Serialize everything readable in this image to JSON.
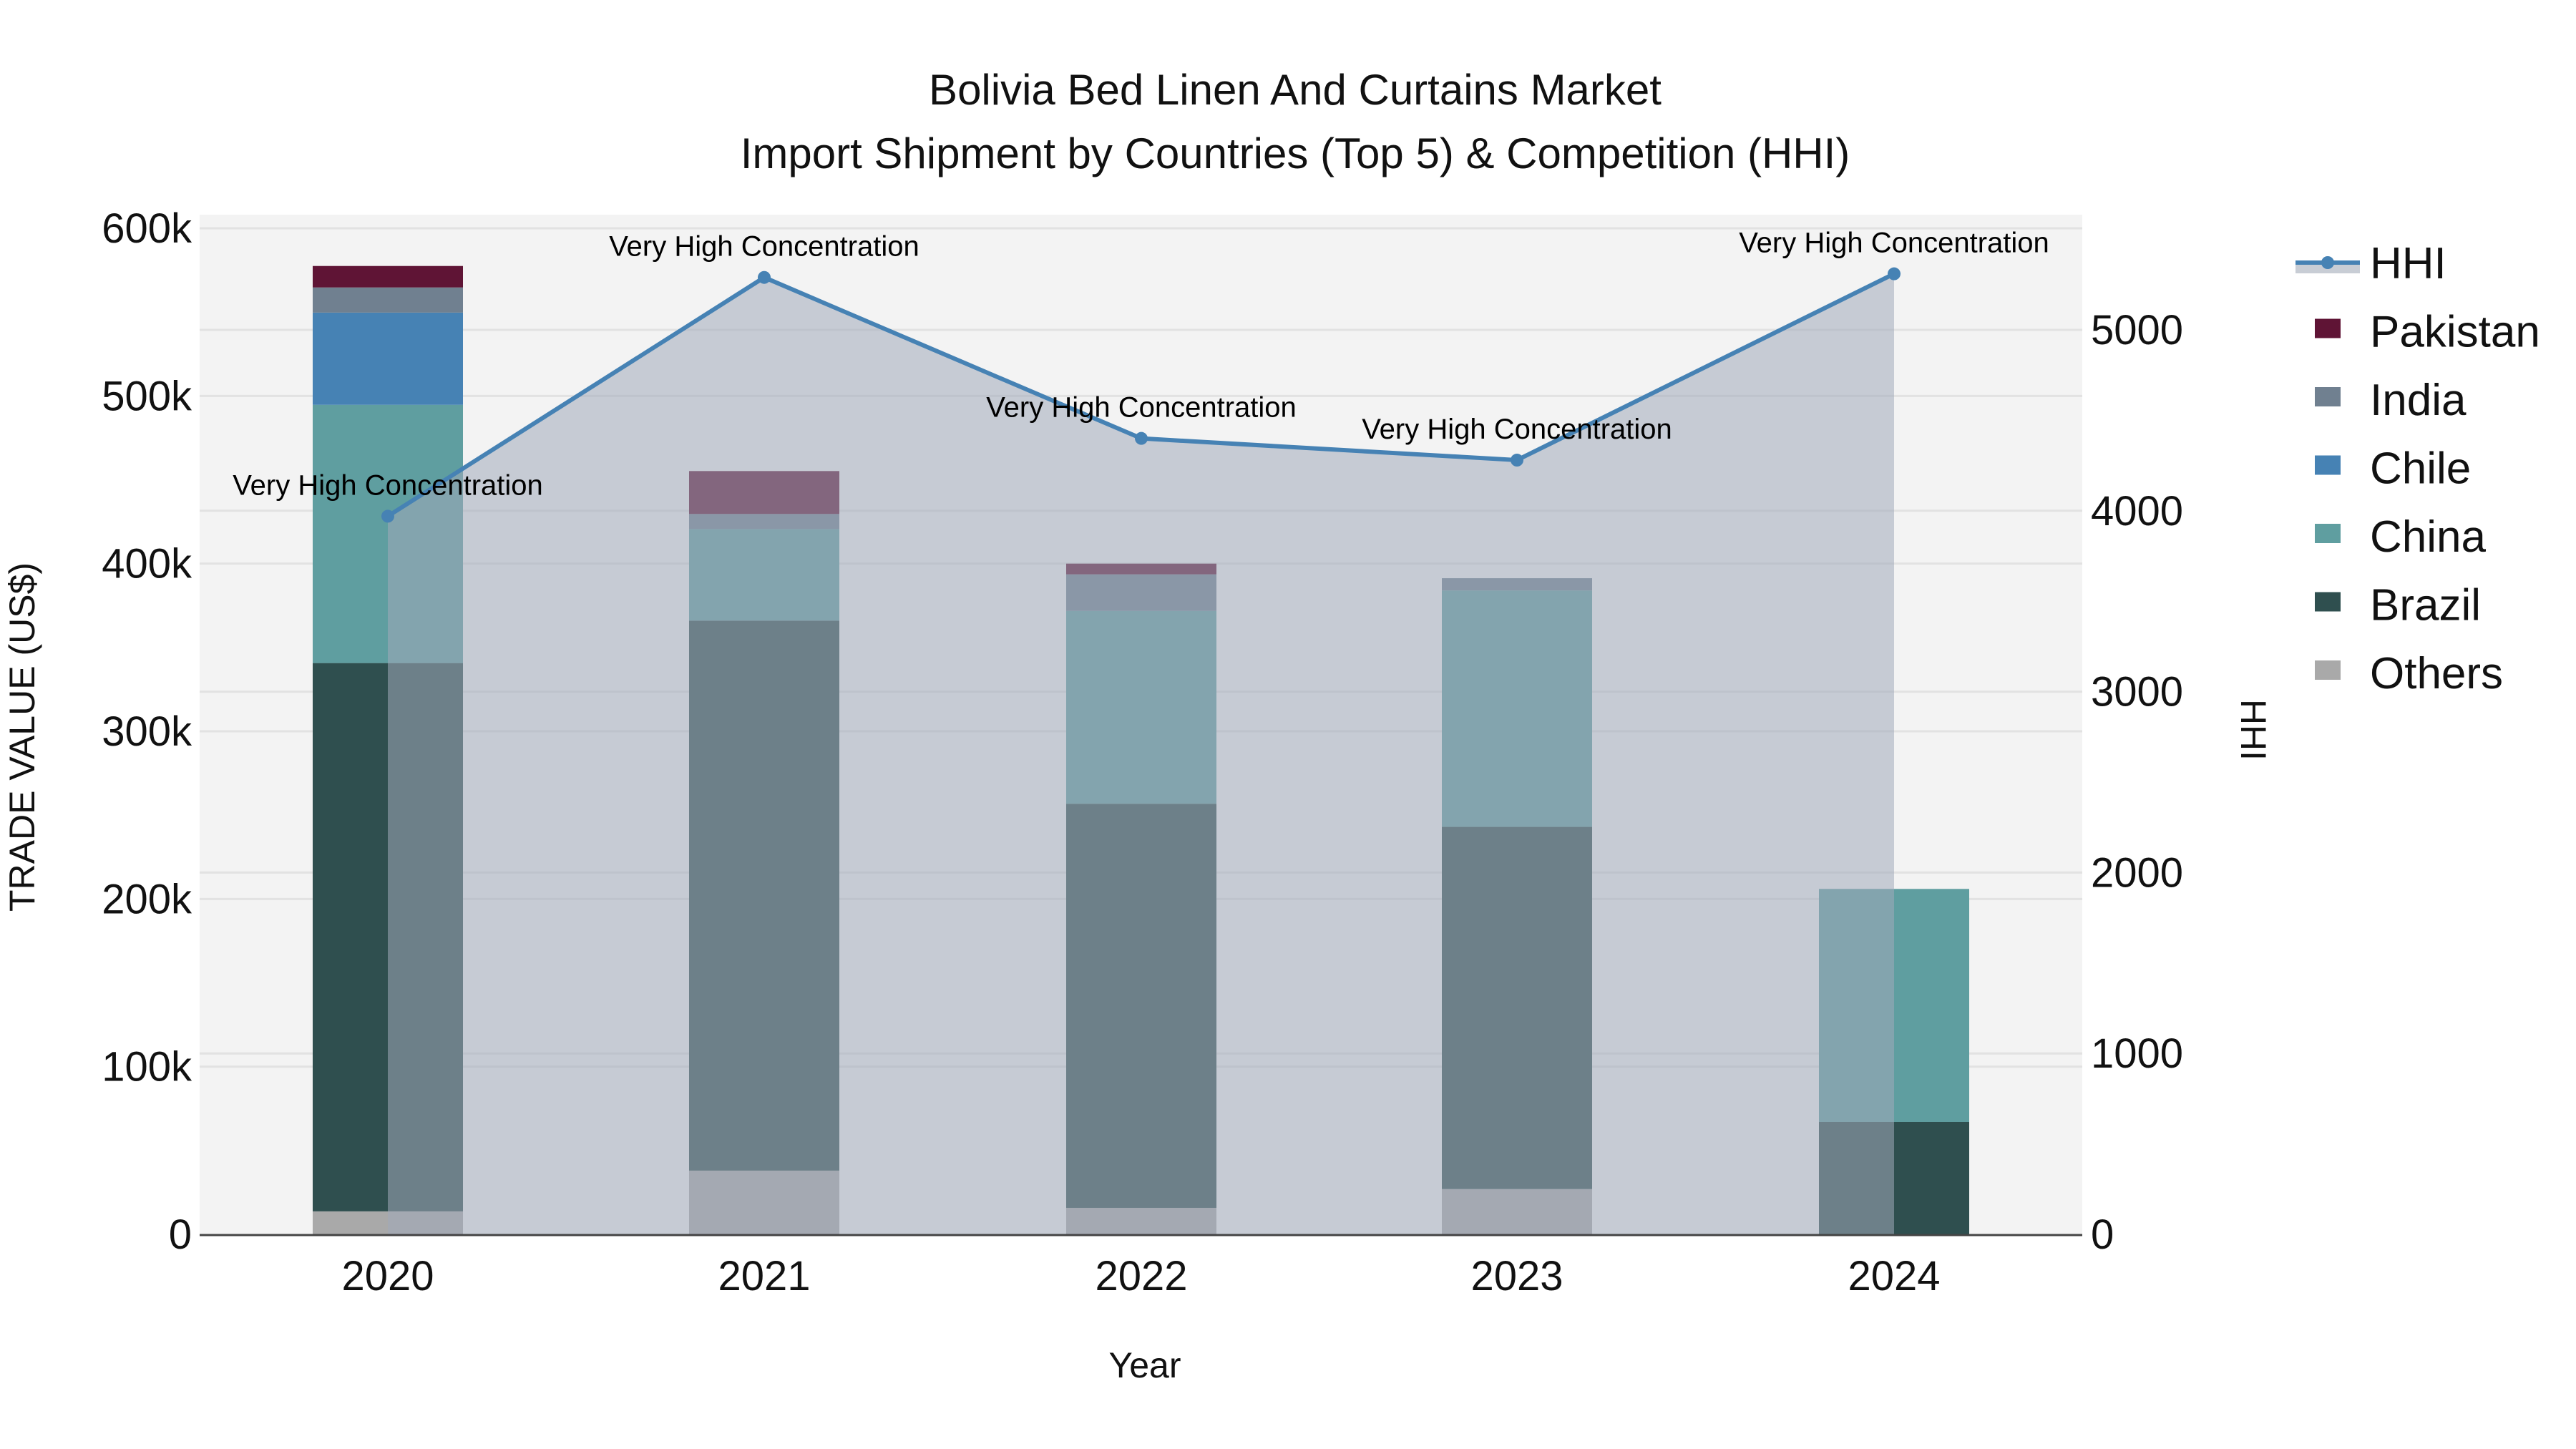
{
  "chart_data": {
    "type": "bar",
    "title": "Bolivia Bed Linen And Curtains Market",
    "subtitle": "Import Shipment by Countries (Top 5) & Competition (HHI)",
    "xlabel": "Year",
    "ylabel": "TRADE VALUE (US$)",
    "y2label": "HHI",
    "categories": [
      "2020",
      "2021",
      "2022",
      "2023",
      "2024"
    ],
    "stacked": true,
    "ylim": [
      0,
      600000
    ],
    "y2lim": [
      0,
      5600
    ],
    "yticks": [
      0,
      100000,
      200000,
      300000,
      400000,
      500000,
      600000
    ],
    "ytick_labels": [
      "0",
      "100k",
      "200k",
      "300k",
      "400k",
      "500k",
      "600k"
    ],
    "y2ticks": [
      0,
      1000,
      2000,
      3000,
      4000,
      5000
    ],
    "y2tick_labels": [
      "0",
      "1000",
      "2000",
      "3000",
      "4000",
      "5000"
    ],
    "series": [
      {
        "name": "Others",
        "color": "#a9a9a9",
        "values": [
          13700,
          38000,
          15800,
          27000,
          0
        ]
      },
      {
        "name": "Brazil",
        "color": "#2f4f4f",
        "values": [
          327000,
          328000,
          241000,
          216000,
          67000
        ]
      },
      {
        "name": "China",
        "color": "#5f9ea0",
        "values": [
          154000,
          54600,
          115000,
          141000,
          139000
        ]
      },
      {
        "name": "Chile",
        "color": "#4682b4",
        "values": [
          55000,
          0,
          0,
          0,
          0
        ]
      },
      {
        "name": "India",
        "color": "#708090",
        "values": [
          15000,
          9000,
          21800,
          7300,
          0
        ]
      },
      {
        "name": "Pakistan",
        "color": "#5f1435",
        "values": [
          12800,
          25600,
          6400,
          0,
          0
        ]
      }
    ],
    "line_series": {
      "name": "HHI",
      "axis": "y2",
      "color": "#4682b4",
      "fill_color": "#c8cdd5",
      "values": [
        3970,
        5290,
        4400,
        4280,
        5310
      ],
      "annotations": [
        "Very High Concentration",
        "Very High Concentration",
        "Very High Concentration",
        "Very High Concentration",
        "Very High Concentration"
      ]
    },
    "legend": [
      "HHI",
      "Pakistan",
      "India",
      "Chile",
      "China",
      "Brazil",
      "Others"
    ],
    "legend_position": "right",
    "grid": true
  }
}
